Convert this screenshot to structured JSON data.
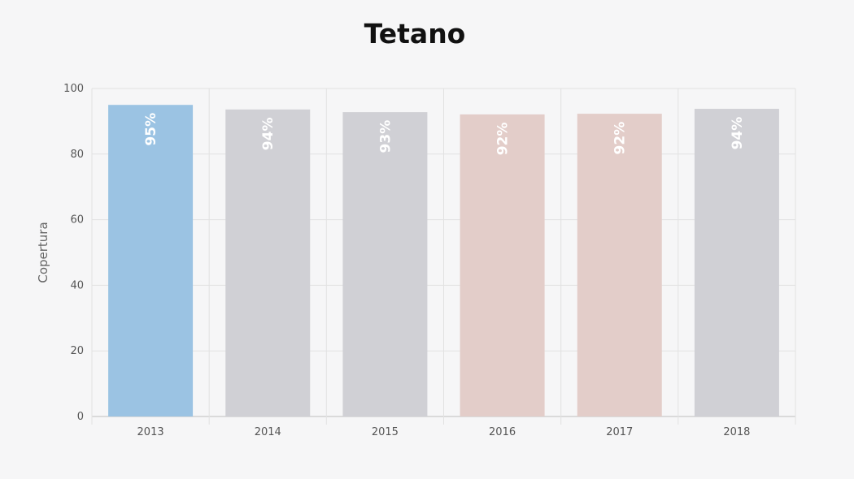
{
  "chart_data": {
    "type": "bar",
    "title": "Tetano",
    "xlabel": "",
    "ylabel": "Copertura",
    "categories": [
      "2013",
      "2014",
      "2015",
      "2016",
      "2017",
      "2018"
    ],
    "values": [
      95,
      93.6,
      92.8,
      92.1,
      92.3,
      93.8
    ],
    "data_labels": [
      "95%",
      "94%",
      "93%",
      "92%",
      "92%",
      "94%"
    ],
    "bar_colors": [
      "#9bc3e3",
      "#d0d0d5",
      "#d0d0d5",
      "#e3cdc9",
      "#e3cdc9",
      "#d0d0d5"
    ],
    "ylim": [
      0,
      100
    ],
    "yticks": [
      0,
      20,
      40,
      60,
      80,
      100
    ],
    "grid": true,
    "legend": "none"
  }
}
